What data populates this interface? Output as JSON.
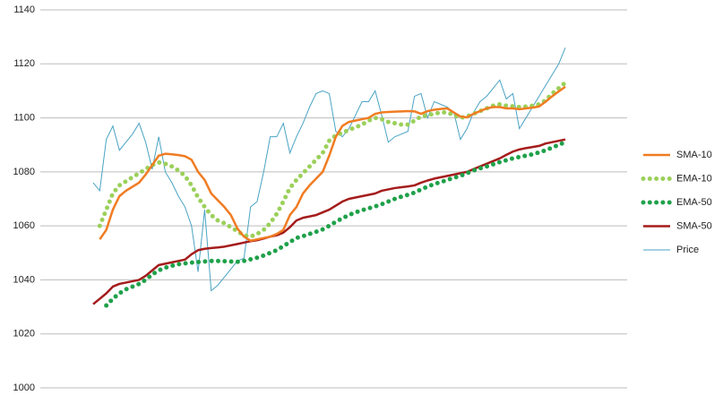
{
  "chart_data": {
    "type": "line",
    "categories": [
      null,
      null,
      null,
      null,
      null,
      null,
      null,
      null,
      null,
      null,
      null,
      null,
      null,
      null,
      null,
      null,
      null,
      null,
      null,
      null,
      null,
      null,
      null,
      null,
      null,
      null,
      null,
      null,
      null,
      null,
      null,
      null,
      null,
      null,
      null,
      null,
      null,
      null,
      null,
      null,
      null,
      null,
      null,
      null,
      null,
      null,
      null,
      null,
      null,
      null,
      null,
      null,
      null,
      null,
      null,
      null,
      null,
      null,
      null,
      null,
      null,
      null,
      null,
      null,
      null,
      null,
      null,
      null,
      null,
      null,
      null,
      null,
      null
    ],
    "ylim": [
      1000,
      1140
    ],
    "yticks": [
      1000,
      1020,
      1040,
      1060,
      1080,
      1100,
      1120,
      1140
    ],
    "grid": true,
    "legend": "right",
    "series": [
      {
        "name": "SMA-10",
        "color": "#f07c22",
        "line_style": "solid",
        "values": [
          null,
          1055,
          1058.5,
          1066,
          1071,
          1073,
          1074.5,
          1076,
          1079,
          1082.5,
          1086,
          1086.7,
          1086.5,
          1086.2,
          1085.8,
          1084.5,
          1080,
          1077,
          1072,
          1069.5,
          1067,
          1064,
          1059,
          1056,
          1054.5,
          1055,
          1055.5,
          1056,
          1057,
          1058.5,
          1064,
          1067,
          1072,
          1075,
          1077.5,
          1080,
          1086,
          1093,
          1097,
          1098.5,
          1099,
          1099.5,
          1100,
          1101.5,
          1102,
          1102.2,
          1102.3,
          1102.4,
          1102.5,
          1102.4,
          1101.5,
          1102.5,
          1103,
          1103.3,
          1103.5,
          1102,
          1100.5,
          1100.2,
          1101.5,
          1102.5,
          1103.5,
          1104,
          1104,
          1103.5,
          1103.5,
          1103.2,
          1103.5,
          1103.8,
          1104.2,
          1106,
          1108,
          1109.8,
          1111.5
        ]
      },
      {
        "name": "EMA-10",
        "color": "#9bd05a",
        "line_style": "dotted",
        "values": [
          null,
          1060,
          1066,
          1072,
          1075,
          1076.5,
          1078,
          1079.5,
          1081,
          1082.5,
          1083.5,
          1083,
          1082,
          1080.5,
          1078.5,
          1075,
          1070.5,
          1067,
          1064,
          1062,
          1061,
          1059.5,
          1058,
          1056.5,
          1056,
          1057,
          1058.5,
          1061,
          1064.5,
          1069,
          1074,
          1077,
          1079.5,
          1082,
          1084.5,
          1087,
          1091.5,
          1093.5,
          1094.5,
          1095.5,
          1096.5,
          1097.5,
          1099,
          1100,
          1099.5,
          1098.5,
          1098,
          1097.5,
          1097.5,
          1099,
          1100.5,
          1101,
          1101.5,
          1102,
          1102,
          1101,
          1100,
          1100.5,
          1101.5,
          1102.5,
          1103.5,
          1104.5,
          1105,
          1104.5,
          1104.3,
          1104,
          1104.2,
          1104.5,
          1105,
          1106.5,
          1109,
          1111,
          1113
        ]
      },
      {
        "name": "EMA-50",
        "color": "#1fa14a",
        "line_style": "dotted",
        "values": [
          null,
          null,
          1030.5,
          1033,
          1035,
          1036.5,
          1037.5,
          1038.5,
          1040,
          1042,
          1043.5,
          1044.5,
          1045.2,
          1045.8,
          1046.1,
          1046.4,
          1046.6,
          1046.8,
          1047,
          1047,
          1046.9,
          1046.8,
          1046.7,
          1047,
          1047.6,
          1048.2,
          1049,
          1050,
          1051,
          1052.5,
          1054,
          1055.5,
          1056.2,
          1057,
          1057.8,
          1058.7,
          1060,
          1061.5,
          1062.8,
          1064,
          1065,
          1065.8,
          1066.5,
          1067.2,
          1068,
          1069,
          1070,
          1070.8,
          1071.5,
          1072.3,
          1073.5,
          1074.5,
          1075.5,
          1076.2,
          1077,
          1077.8,
          1078.5,
          1079.5,
          1080.5,
          1081.3,
          1082,
          1082.8,
          1083.6,
          1084.3,
          1085,
          1085.5,
          1086,
          1086.5,
          1087.2,
          1088,
          1089,
          1090,
          1091
        ]
      },
      {
        "name": "SMA-50",
        "color": "#a51c1c",
        "line_style": "solid",
        "values": [
          1031,
          1033,
          1035,
          1037.5,
          1038.5,
          1039,
          1039.5,
          1040,
          1041.5,
          1043.5,
          1045.5,
          1046,
          1046.5,
          1047,
          1047.5,
          1049.5,
          1051,
          1051.5,
          1051.8,
          1052,
          1052.3,
          1052.8,
          1053.3,
          1053.8,
          1054.3,
          1054.7,
          1055.3,
          1056,
          1056.5,
          1057.5,
          1059.5,
          1062,
          1063,
          1063.5,
          1064,
          1065,
          1066,
          1067.5,
          1069,
          1070,
          1070.5,
          1071,
          1071.5,
          1072,
          1073,
          1073.5,
          1074,
          1074.3,
          1074.6,
          1075,
          1076,
          1076.8,
          1077.5,
          1078,
          1078.5,
          1079,
          1079.5,
          1080,
          1081,
          1082,
          1083,
          1084,
          1085,
          1086.3,
          1087.5,
          1088.3,
          1088.8,
          1089.2,
          1089.6,
          1090.5,
          1091,
          1091.5,
          1092
        ]
      },
      {
        "name": "Price",
        "color": "#4aa3c4",
        "line_style": "thin",
        "values": [
          1076,
          1073,
          1092,
          1097,
          1088,
          1091,
          1094,
          1098,
          1091,
          1081,
          1093,
          1080,
          1076,
          1071,
          1067,
          1060,
          1043,
          1066,
          1036,
          1038,
          1041,
          1044,
          1047,
          1048,
          1067,
          1069,
          1080,
          1093,
          1093,
          1098,
          1087,
          1093,
          1098,
          1104,
          1109,
          1110,
          1109,
          1095,
          1093,
          1096,
          1101,
          1106,
          1106,
          1110,
          1101,
          1091,
          1093,
          1094,
          1095,
          1108,
          1109,
          1100,
          1106,
          1105,
          1104,
          1102,
          1092,
          1096,
          1102,
          1106,
          1108,
          1111,
          1114,
          1107,
          1109,
          1096,
          1100,
          1104,
          1108,
          1112,
          1116,
          1120,
          1126
        ]
      }
    ]
  }
}
